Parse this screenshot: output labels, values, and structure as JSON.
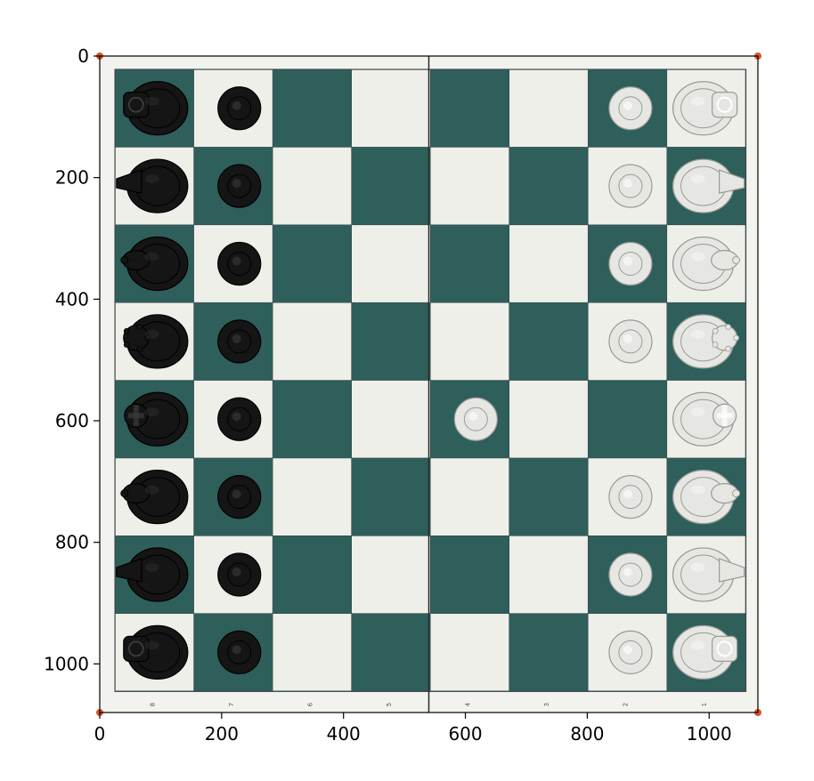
{
  "figure": {
    "image_extent": {
      "x": [
        0,
        1080
      ],
      "y": [
        0,
        1080
      ]
    },
    "x_ticks": [
      "0",
      "200",
      "400",
      "600",
      "800",
      "1000"
    ],
    "y_ticks": [
      "0",
      "200",
      "400",
      "600",
      "800",
      "1000"
    ]
  },
  "board": {
    "light_square_color": "#efefea",
    "dark_square_color": "#2e5f5a",
    "frame_color": "#f2f2ee",
    "grid_line_color": "#3a4a4a",
    "rank_edge_labels": [
      "8",
      "7",
      "6",
      "5",
      "4",
      "3",
      "2",
      "1"
    ]
  },
  "pieces": {
    "black_color": "#151515",
    "white_color": "#e6e6e2",
    "black_back_rank": [
      "rook",
      "knight",
      "bishop",
      "queen",
      "king",
      "bishop",
      "knight",
      "rook"
    ],
    "black_pawn_rows": [
      0,
      1,
      2,
      3,
      4,
      5,
      6,
      7
    ],
    "white_back_rank": [
      "rook",
      "knight",
      "bishop",
      "queen",
      "king",
      "bishop",
      "knight",
      "rook"
    ],
    "white_pawn_rows": [
      0,
      1,
      2,
      3,
      5,
      6,
      7
    ],
    "white_advanced_pawn": {
      "row": 4,
      "col": 4
    }
  }
}
